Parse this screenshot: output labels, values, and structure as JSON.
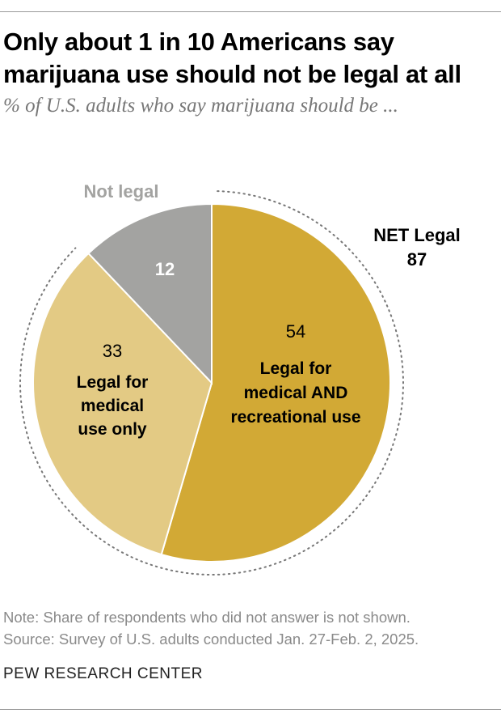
{
  "title": "Only about 1 in 10 Americans say marijuana use should not be legal at all",
  "subtitle": "% of U.S. adults who say marijuana should be ...",
  "chart_data": {
    "type": "pie",
    "start": "top, clockwise",
    "slices": [
      {
        "label": "Legal for medical AND recreational use",
        "label_lines": [
          "Legal for",
          "medical AND",
          "recreational use"
        ],
        "value": 54,
        "color": "#d2a935"
      },
      {
        "label": "Legal for medical use only",
        "label_lines": [
          "Legal for",
          "medical",
          "use only"
        ],
        "value": 33,
        "color": "#e3ca84"
      },
      {
        "label": "Not legal",
        "value": 12,
        "color": "#a3a3a1"
      }
    ],
    "annotations": {
      "net_label": "NET Legal",
      "net_value": "87",
      "not_legal_label": "Not legal"
    }
  },
  "notes": {
    "note": "Note: Share of respondents who did not answer is not shown.",
    "source": "Source: Survey of U.S. adults conducted Jan. 27-Feb. 2, 2025."
  },
  "brand": "PEW RESEARCH CENTER"
}
